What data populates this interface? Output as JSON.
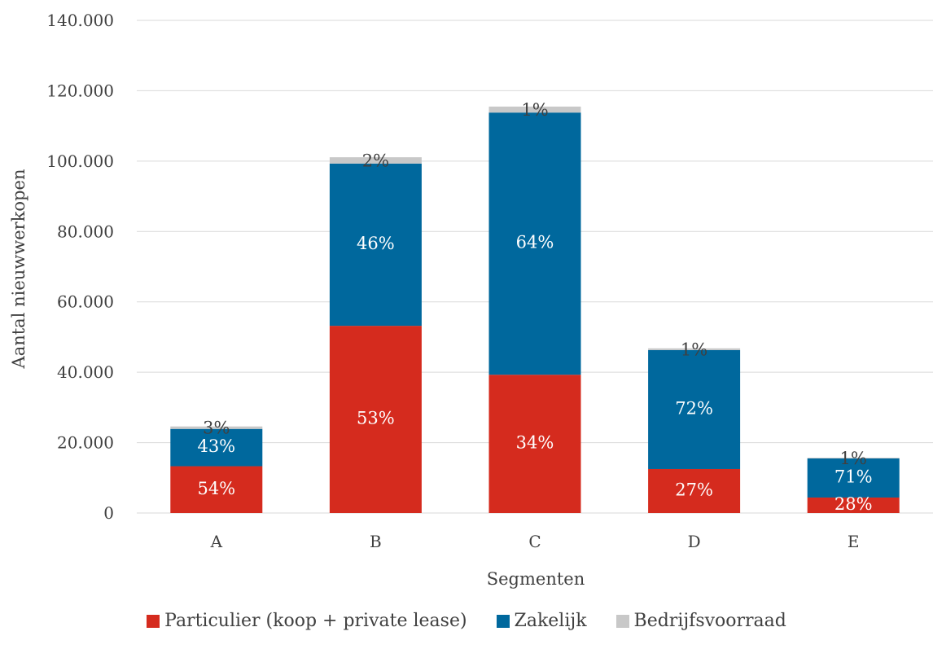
{
  "chart_data": {
    "type": "bar",
    "stacked": true,
    "categories": [
      "A",
      "B",
      "C",
      "D",
      "E"
    ],
    "xlabel": "Segmenten",
    "ylabel": "Aantal nieuwwerkopen",
    "ylim": [
      0,
      140000
    ],
    "yticks": [
      "0",
      "20.000",
      "40.000",
      "60.000",
      "80.000",
      "100.000",
      "120.000",
      "140.000"
    ],
    "ytick_values": [
      0,
      20000,
      40000,
      60000,
      80000,
      100000,
      120000,
      140000
    ],
    "grid": true,
    "legend_position": "bottom",
    "series": [
      {
        "name": "Particulier (koop + private lease)",
        "color": "#d52b1e",
        "values": [
          13300,
          53200,
          39300,
          12500,
          4400
        ],
        "labels": [
          "54%",
          "53%",
          "34%",
          "27%",
          "28%"
        ]
      },
      {
        "name": "Zakelijk",
        "color": "#00689d",
        "values": [
          10600,
          46100,
          74500,
          33800,
          11100
        ],
        "labels": [
          "43%",
          "46%",
          "64%",
          "72%",
          "71%"
        ]
      },
      {
        "name": "Bedrijfsvoorraad",
        "color": "#c8c8c8",
        "values": [
          700,
          1800,
          1700,
          500,
          200
        ],
        "labels": [
          "3%",
          "2%",
          "1%",
          "1%",
          "1%"
        ]
      }
    ]
  }
}
